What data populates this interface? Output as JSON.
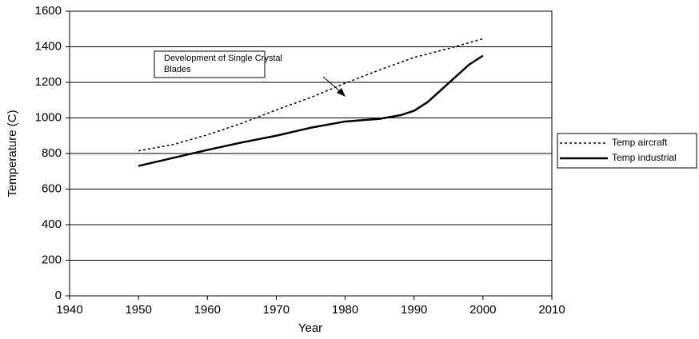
{
  "chart_data": {
    "type": "line",
    "xlabel": "Year",
    "ylabel": "Temperature (C)",
    "xlim": [
      1940,
      2010
    ],
    "xticks": [
      1940,
      1950,
      1960,
      1970,
      1980,
      1990,
      2000,
      2010
    ],
    "ylim": [
      0,
      1600
    ],
    "yticks": [
      0,
      200,
      400,
      600,
      800,
      1000,
      1200,
      1400,
      1600
    ],
    "grid": true,
    "legend": "right",
    "annotation": {
      "lines": [
        "Development of Single Crystal",
        "Blades"
      ]
    },
    "series": [
      {
        "name": "Temp aircraft",
        "color": "#000000",
        "style": "dotted",
        "x": [
          1950,
          1955,
          1960,
          1965,
          1970,
          1975,
          1980,
          1985,
          1990,
          1995,
          2000
        ],
        "values": [
          815,
          850,
          905,
          970,
          1045,
          1115,
          1195,
          1270,
          1340,
          1390,
          1445
        ]
      },
      {
        "name": "Temp industrial",
        "color": "#000000",
        "style": "solid",
        "x": [
          1950,
          1955,
          1960,
          1965,
          1970,
          1975,
          1980,
          1985,
          1988,
          1990,
          1992,
          1994,
          1996,
          1998,
          2000
        ],
        "values": [
          730,
          775,
          820,
          862,
          900,
          945,
          980,
          995,
          1015,
          1040,
          1090,
          1160,
          1230,
          1300,
          1350
        ]
      }
    ]
  }
}
